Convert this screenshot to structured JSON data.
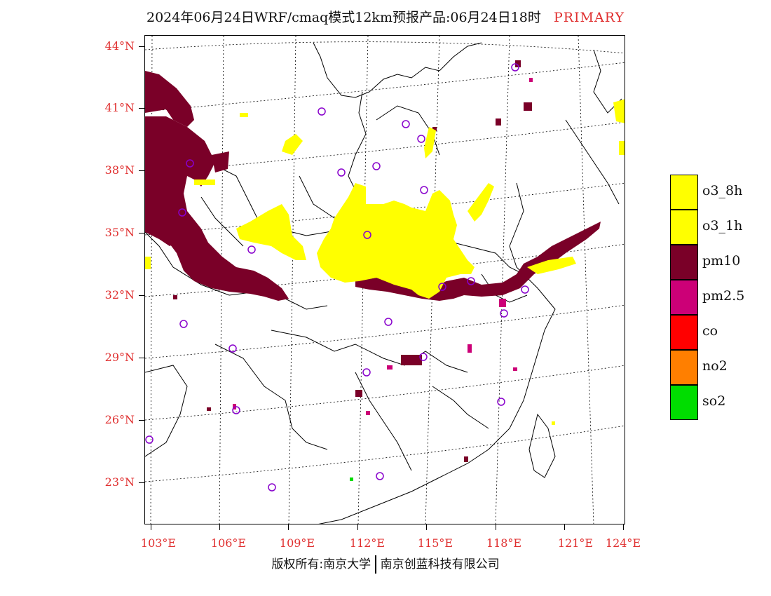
{
  "header": {
    "title": "2024年06月24日WRF/cmaq模式12km预报产品:06月24日18时",
    "tag": "PRIMARY"
  },
  "map": {
    "lat_labels": [
      "44°N",
      "41°N",
      "38°N",
      "35°N",
      "32°N",
      "29°N",
      "26°N",
      "23°N"
    ],
    "lon_labels": [
      "103°E",
      "106°E",
      "109°E",
      "112°E",
      "115°E",
      "118°E",
      "121°E",
      "124°E"
    ]
  },
  "legend": {
    "items": [
      {
        "label": "o3_8h",
        "color": "#ffff00"
      },
      {
        "label": "o3_1h",
        "color": "#ffff00"
      },
      {
        "label": "pm10",
        "color": "#7a0028"
      },
      {
        "label": "pm2.5",
        "color": "#cc0077"
      },
      {
        "label": "co",
        "color": "#ff0000"
      },
      {
        "label": "no2",
        "color": "#ff7f00"
      },
      {
        "label": "so2",
        "color": "#00dd00"
      }
    ]
  },
  "footer": {
    "left": "版权所有:南京大学",
    "right": "南京创蓝科技有限公司"
  }
}
